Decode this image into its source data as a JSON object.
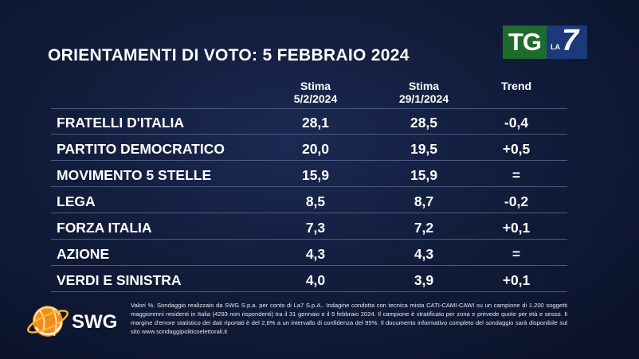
{
  "title": "ORIENTAMENTI DI VOTO: 5 FEBBRAIO 2024",
  "logo": {
    "tg": "TG",
    "la": "LA",
    "seven": "7"
  },
  "chart_data": {
    "type": "table",
    "columns": [
      {
        "line1": "Stima",
        "line2": "5/2/2024"
      },
      {
        "line1": "Stima",
        "line2": "29/1/2024"
      },
      {
        "line1": "Trend",
        "line2": ""
      }
    ],
    "rows": [
      {
        "party": "FRATELLI D'ITALIA",
        "values": [
          "28,1",
          "28,5",
          "-0,4"
        ]
      },
      {
        "party": "PARTITO DEMOCRATICO",
        "values": [
          "20,0",
          "19,5",
          "+0,5"
        ]
      },
      {
        "party": "MOVIMENTO 5 STELLE",
        "values": [
          "15,9",
          "15,9",
          "="
        ]
      },
      {
        "party": "LEGA",
        "values": [
          "8,5",
          "8,7",
          "-0,2"
        ]
      },
      {
        "party": "FORZA ITALIA",
        "values": [
          "7,3",
          "7,2",
          "+0,1"
        ]
      },
      {
        "party": "AZIONE",
        "values": [
          "4,3",
          "4,3",
          "="
        ]
      },
      {
        "party": "VERDI E SINISTRA",
        "values": [
          "4,0",
          "3,9",
          "+0,1"
        ]
      }
    ]
  },
  "source_logo": {
    "text": "SWG",
    "colors": {
      "orange": "#f28c1c",
      "gold": "#f6b63a"
    }
  },
  "note": "Valori %. Sondaggio realizzato da SWG S.p.a. per conto di La7 S.p.A.. Indagine condotta con tecnica mista CATI-CAMI-CAWI su un campione di 1.200 soggetti maggiorenni residenti in Italia (4293 non rispondenti) tra il 31 gennaio e il 5 febbraio 2024. Il campione è stratificato per zona e prevede quote per età e sesso. Il margine d'errore statistico dei dati riportati è del 2,8% a un intervallo di confidenza del 95%. Il documento informativo completo del sondaggio sarà disponibile sul sito www.sondaggipoliticoelettorali.it",
  "colors": {
    "background": "#121d3c",
    "tg_green": "#1e6b2e",
    "la7_blue": "#1a3a7a",
    "divider": "#4a5a80"
  }
}
